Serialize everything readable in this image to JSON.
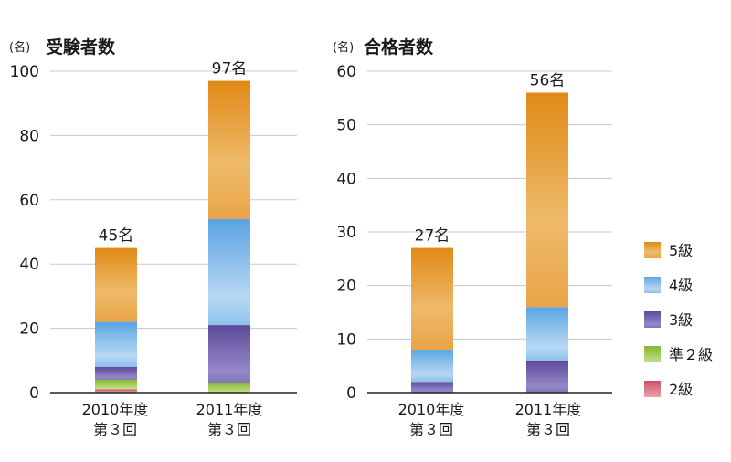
{
  "chart_data": [
    {
      "type": "bar",
      "stacked": true,
      "title": "受験者数",
      "unit_label": "(名)",
      "categories": [
        {
          "line1": "2010年度",
          "line2": "第３回"
        },
        {
          "line1": "2011年度",
          "line2": "第３回"
        }
      ],
      "series": [
        {
          "name": "2級",
          "values": [
            1,
            0
          ]
        },
        {
          "name": "準２級",
          "values": [
            3,
            3
          ]
        },
        {
          "name": "3級",
          "values": [
            4,
            18
          ]
        },
        {
          "name": "4級",
          "values": [
            14,
            33
          ]
        },
        {
          "name": "5級",
          "values": [
            23,
            43
          ]
        }
      ],
      "totals": [
        "45名",
        "97名"
      ],
      "ylim": [
        0,
        100
      ],
      "yticks": [
        0,
        20,
        40,
        60,
        80,
        100
      ],
      "grid": true
    },
    {
      "type": "bar",
      "stacked": true,
      "title": "合格者数",
      "unit_label": "(名)",
      "categories": [
        {
          "line1": "2010年度",
          "line2": "第３回"
        },
        {
          "line1": "2011年度",
          "line2": "第３回"
        }
      ],
      "series": [
        {
          "name": "2級",
          "values": [
            0,
            0
          ]
        },
        {
          "name": "準２級",
          "values": [
            0,
            0
          ]
        },
        {
          "name": "3級",
          "values": [
            2,
            6
          ]
        },
        {
          "name": "4級",
          "values": [
            6,
            10
          ]
        },
        {
          "name": "5級",
          "values": [
            19,
            40
          ]
        }
      ],
      "totals": [
        "27名",
        "56名"
      ],
      "ylim": [
        0,
        60
      ],
      "yticks": [
        0,
        10,
        20,
        30,
        40,
        50,
        60
      ],
      "grid": true
    }
  ],
  "legend": {
    "placement": "right",
    "items": [
      {
        "name": "5級",
        "color": "#e8a23a"
      },
      {
        "name": "4級",
        "color": "#6aaee6"
      },
      {
        "name": "3級",
        "color": "#6f5aa8"
      },
      {
        "name": "準２級",
        "color": "#9cc84a"
      },
      {
        "name": "2級",
        "color": "#d86a7c"
      }
    ]
  },
  "series_colors": {
    "2級": "#d86a7c",
    "準２級": "#9cc84a",
    "3級": "#6f5aa8",
    "4級": "#6aaee6",
    "5級": "#e8a23a"
  }
}
